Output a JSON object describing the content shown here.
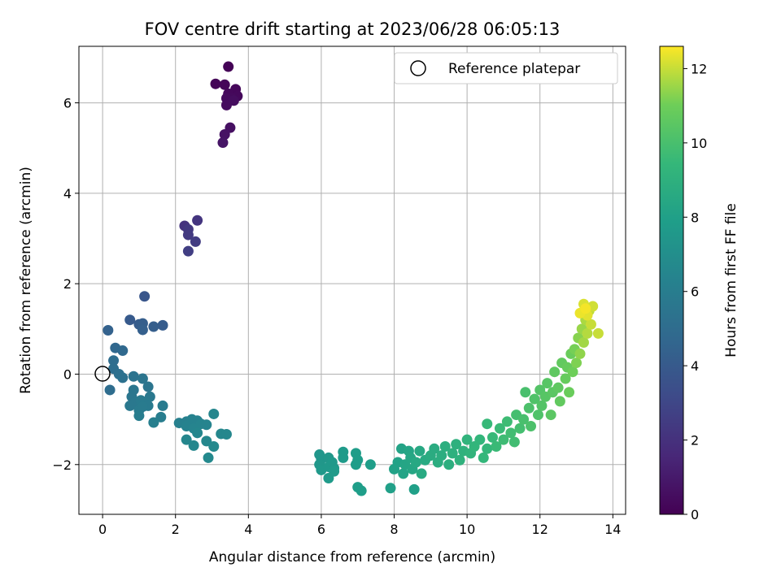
{
  "chart_data": {
    "type": "scatter",
    "title": "FOV centre drift starting at 2023/06/28 06:05:13",
    "xlabel": "Angular distance from reference (arcmin)",
    "ylabel": "Rotation from reference (arcmin)",
    "xlim": [
      -0.65,
      14.35
    ],
    "ylim": [
      -3.1,
      7.25
    ],
    "xticks": [
      0,
      2,
      4,
      6,
      8,
      10,
      12,
      14
    ],
    "yticks": [
      -2,
      0,
      2,
      4,
      6
    ],
    "grid": true,
    "legend": {
      "placement": "top-right",
      "entries": [
        "Reference platepar"
      ]
    },
    "reference_point": {
      "x": 0,
      "y": 0
    },
    "colorbar": {
      "label": "Hours from first FF file",
      "range": [
        0,
        12.6
      ],
      "ticks": [
        0,
        2,
        4,
        6,
        8,
        10,
        12
      ],
      "colormap": "viridis"
    },
    "points": [
      {
        "x": 3.45,
        "y": 6.8,
        "c": 0.1
      },
      {
        "x": 3.1,
        "y": 6.42,
        "c": 0.15
      },
      {
        "x": 3.35,
        "y": 6.4,
        "c": 0.2
      },
      {
        "x": 3.65,
        "y": 6.3,
        "c": 0.25
      },
      {
        "x": 3.7,
        "y": 6.15,
        "c": 0.3
      },
      {
        "x": 3.55,
        "y": 6.1,
        "c": 0.35
      },
      {
        "x": 3.4,
        "y": 6.1,
        "c": 0.4
      },
      {
        "x": 3.4,
        "y": 5.95,
        "c": 0.45
      },
      {
        "x": 3.6,
        "y": 6.05,
        "c": 0.5
      },
      {
        "x": 3.45,
        "y": 6.2,
        "c": 0.3
      },
      {
        "x": 3.5,
        "y": 5.45,
        "c": 0.6
      },
      {
        "x": 3.35,
        "y": 5.3,
        "c": 0.7
      },
      {
        "x": 3.3,
        "y": 5.12,
        "c": 0.8
      },
      {
        "x": 2.25,
        "y": 3.28,
        "c": 2.1
      },
      {
        "x": 2.6,
        "y": 3.4,
        "c": 2.2
      },
      {
        "x": 2.35,
        "y": 3.2,
        "c": 2.3
      },
      {
        "x": 2.35,
        "y": 3.08,
        "c": 2.4
      },
      {
        "x": 2.55,
        "y": 2.93,
        "c": 2.5
      },
      {
        "x": 2.35,
        "y": 2.72,
        "c": 2.6
      },
      {
        "x": 1.15,
        "y": 1.72,
        "c": 3.8
      },
      {
        "x": 0.75,
        "y": 1.2,
        "c": 4.0
      },
      {
        "x": 1.0,
        "y": 1.1,
        "c": 4.1
      },
      {
        "x": 1.1,
        "y": 1.12,
        "c": 4.2
      },
      {
        "x": 1.1,
        "y": 0.98,
        "c": 4.3
      },
      {
        "x": 1.4,
        "y": 1.05,
        "c": 4.2
      },
      {
        "x": 1.65,
        "y": 1.08,
        "c": 4.1
      },
      {
        "x": 0.15,
        "y": 0.97,
        "c": 4.4
      },
      {
        "x": 0.35,
        "y": 0.58,
        "c": 4.7
      },
      {
        "x": 0.55,
        "y": 0.52,
        "c": 4.8
      },
      {
        "x": 0.3,
        "y": 0.3,
        "c": 5.0
      },
      {
        "x": 0.3,
        "y": 0.12,
        "c": 5.1
      },
      {
        "x": 0.45,
        "y": 0.0,
        "c": 5.2
      },
      {
        "x": 0.55,
        "y": -0.08,
        "c": 5.3
      },
      {
        "x": 0.2,
        "y": -0.35,
        "c": 5.0
      },
      {
        "x": 0.85,
        "y": -0.05,
        "c": 5.4
      },
      {
        "x": 1.1,
        "y": -0.1,
        "c": 5.5
      },
      {
        "x": 1.25,
        "y": -0.28,
        "c": 5.5
      },
      {
        "x": 0.85,
        "y": -0.35,
        "c": 5.6
      },
      {
        "x": 0.8,
        "y": -0.5,
        "c": 5.6
      },
      {
        "x": 0.9,
        "y": -0.62,
        "c": 5.7
      },
      {
        "x": 0.75,
        "y": -0.7,
        "c": 5.7
      },
      {
        "x": 1.05,
        "y": -0.58,
        "c": 5.8
      },
      {
        "x": 1.2,
        "y": -0.62,
        "c": 5.8
      },
      {
        "x": 1.3,
        "y": -0.5,
        "c": 5.7
      },
      {
        "x": 1.0,
        "y": -0.8,
        "c": 5.9
      },
      {
        "x": 1.1,
        "y": -0.72,
        "c": 5.9
      },
      {
        "x": 1.25,
        "y": -0.7,
        "c": 5.8
      },
      {
        "x": 1.65,
        "y": -0.7,
        "c": 5.9
      },
      {
        "x": 1.0,
        "y": -0.92,
        "c": 6.0
      },
      {
        "x": 1.6,
        "y": -0.95,
        "c": 6.0
      },
      {
        "x": 1.4,
        "y": -1.07,
        "c": 6.1
      },
      {
        "x": 2.1,
        "y": -1.08,
        "c": 6.2
      },
      {
        "x": 2.3,
        "y": -1.05,
        "c": 6.2
      },
      {
        "x": 2.45,
        "y": -1.0,
        "c": 6.3
      },
      {
        "x": 2.6,
        "y": -1.03,
        "c": 6.3
      },
      {
        "x": 2.3,
        "y": -1.15,
        "c": 6.3
      },
      {
        "x": 2.5,
        "y": -1.2,
        "c": 6.4
      },
      {
        "x": 2.7,
        "y": -1.1,
        "c": 6.4
      },
      {
        "x": 2.85,
        "y": -1.12,
        "c": 6.4
      },
      {
        "x": 3.05,
        "y": -0.88,
        "c": 6.5
      },
      {
        "x": 2.6,
        "y": -1.3,
        "c": 6.5
      },
      {
        "x": 2.3,
        "y": -1.45,
        "c": 6.5
      },
      {
        "x": 2.5,
        "y": -1.58,
        "c": 6.6
      },
      {
        "x": 2.85,
        "y": -1.48,
        "c": 6.6
      },
      {
        "x": 3.05,
        "y": -1.6,
        "c": 6.7
      },
      {
        "x": 2.9,
        "y": -1.85,
        "c": 6.7
      },
      {
        "x": 3.25,
        "y": -1.32,
        "c": 6.6
      },
      {
        "x": 3.4,
        "y": -1.33,
        "c": 6.6
      },
      {
        "x": 5.95,
        "y": -1.78,
        "c": 7.4
      },
      {
        "x": 6.0,
        "y": -1.88,
        "c": 7.4
      },
      {
        "x": 5.95,
        "y": -2.0,
        "c": 7.5
      },
      {
        "x": 6.2,
        "y": -1.85,
        "c": 7.5
      },
      {
        "x": 6.0,
        "y": -2.12,
        "c": 7.6
      },
      {
        "x": 6.2,
        "y": -2.05,
        "c": 7.6
      },
      {
        "x": 6.35,
        "y": -2.08,
        "c": 7.6
      },
      {
        "x": 6.3,
        "y": -1.95,
        "c": 7.6
      },
      {
        "x": 6.2,
        "y": -2.3,
        "c": 7.7
      },
      {
        "x": 6.35,
        "y": -2.15,
        "c": 7.7
      },
      {
        "x": 6.6,
        "y": -1.72,
        "c": 7.7
      },
      {
        "x": 6.6,
        "y": -1.85,
        "c": 7.7
      },
      {
        "x": 6.95,
        "y": -1.75,
        "c": 7.8
      },
      {
        "x": 7.0,
        "y": -1.9,
        "c": 7.8
      },
      {
        "x": 6.95,
        "y": -2.0,
        "c": 7.8
      },
      {
        "x": 7.0,
        "y": -2.5,
        "c": 7.9
      },
      {
        "x": 7.1,
        "y": -2.58,
        "c": 7.9
      },
      {
        "x": 7.35,
        "y": -2.0,
        "c": 7.9
      },
      {
        "x": 7.9,
        "y": -2.52,
        "c": 8.0
      },
      {
        "x": 8.55,
        "y": -2.55,
        "c": 8.0
      },
      {
        "x": 8.0,
        "y": -2.1,
        "c": 8.1
      },
      {
        "x": 8.1,
        "y": -1.95,
        "c": 8.1
      },
      {
        "x": 8.2,
        "y": -1.65,
        "c": 8.2
      },
      {
        "x": 8.25,
        "y": -2.2,
        "c": 8.2
      },
      {
        "x": 8.3,
        "y": -2.0,
        "c": 8.3
      },
      {
        "x": 8.4,
        "y": -1.7,
        "c": 8.3
      },
      {
        "x": 8.45,
        "y": -1.85,
        "c": 8.4
      },
      {
        "x": 8.5,
        "y": -2.1,
        "c": 8.4
      },
      {
        "x": 8.6,
        "y": -1.95,
        "c": 8.5
      },
      {
        "x": 8.7,
        "y": -1.7,
        "c": 8.5
      },
      {
        "x": 8.75,
        "y": -2.2,
        "c": 8.6
      },
      {
        "x": 8.85,
        "y": -1.9,
        "c": 8.6
      },
      {
        "x": 9.0,
        "y": -1.8,
        "c": 8.7
      },
      {
        "x": 9.1,
        "y": -1.65,
        "c": 8.7
      },
      {
        "x": 9.2,
        "y": -1.95,
        "c": 8.8
      },
      {
        "x": 9.3,
        "y": -1.8,
        "c": 8.8
      },
      {
        "x": 9.4,
        "y": -1.6,
        "c": 8.9
      },
      {
        "x": 9.5,
        "y": -2.0,
        "c": 8.9
      },
      {
        "x": 9.6,
        "y": -1.75,
        "c": 9.0
      },
      {
        "x": 9.7,
        "y": -1.55,
        "c": 9.0
      },
      {
        "x": 9.8,
        "y": -1.9,
        "c": 9.1
      },
      {
        "x": 9.9,
        "y": -1.7,
        "c": 9.1
      },
      {
        "x": 10.0,
        "y": -1.45,
        "c": 9.2
      },
      {
        "x": 10.1,
        "y": -1.75,
        "c": 9.2
      },
      {
        "x": 10.2,
        "y": -1.6,
        "c": 9.3
      },
      {
        "x": 10.35,
        "y": -1.45,
        "c": 9.3
      },
      {
        "x": 10.45,
        "y": -1.85,
        "c": 9.4
      },
      {
        "x": 10.55,
        "y": -1.65,
        "c": 9.4
      },
      {
        "x": 10.55,
        "y": -1.1,
        "c": 9.5
      },
      {
        "x": 10.7,
        "y": -1.4,
        "c": 9.5
      },
      {
        "x": 10.8,
        "y": -1.6,
        "c": 9.6
      },
      {
        "x": 10.9,
        "y": -1.2,
        "c": 9.6
      },
      {
        "x": 11.0,
        "y": -1.45,
        "c": 9.7
      },
      {
        "x": 11.1,
        "y": -1.05,
        "c": 9.7
      },
      {
        "x": 11.2,
        "y": -1.3,
        "c": 9.8
      },
      {
        "x": 11.3,
        "y": -1.5,
        "c": 9.8
      },
      {
        "x": 11.35,
        "y": -0.9,
        "c": 9.9
      },
      {
        "x": 11.45,
        "y": -1.2,
        "c": 9.9
      },
      {
        "x": 11.55,
        "y": -1.0,
        "c": 10.0
      },
      {
        "x": 11.6,
        "y": -0.4,
        "c": 10.0
      },
      {
        "x": 11.7,
        "y": -0.75,
        "c": 10.1
      },
      {
        "x": 11.75,
        "y": -1.15,
        "c": 10.1
      },
      {
        "x": 11.85,
        "y": -0.55,
        "c": 10.2
      },
      {
        "x": 11.95,
        "y": -0.9,
        "c": 10.2
      },
      {
        "x": 12.0,
        "y": -0.35,
        "c": 10.3
      },
      {
        "x": 12.05,
        "y": -0.7,
        "c": 10.3
      },
      {
        "x": 12.15,
        "y": -0.5,
        "c": 10.4
      },
      {
        "x": 12.2,
        "y": -0.2,
        "c": 10.4
      },
      {
        "x": 12.3,
        "y": -0.9,
        "c": 10.5
      },
      {
        "x": 12.35,
        "y": -0.4,
        "c": 10.5
      },
      {
        "x": 12.4,
        "y": 0.05,
        "c": 10.6
      },
      {
        "x": 12.5,
        "y": -0.3,
        "c": 10.6
      },
      {
        "x": 12.55,
        "y": -0.6,
        "c": 10.7
      },
      {
        "x": 12.6,
        "y": 0.25,
        "c": 10.7
      },
      {
        "x": 12.7,
        "y": -0.1,
        "c": 10.8
      },
      {
        "x": 12.75,
        "y": 0.15,
        "c": 10.8
      },
      {
        "x": 12.8,
        "y": -0.4,
        "c": 10.9
      },
      {
        "x": 12.85,
        "y": 0.45,
        "c": 10.9
      },
      {
        "x": 12.9,
        "y": 0.05,
        "c": 11.0
      },
      {
        "x": 12.95,
        "y": 0.55,
        "c": 11.1
      },
      {
        "x": 13.0,
        "y": 0.25,
        "c": 11.2
      },
      {
        "x": 13.05,
        "y": 0.8,
        "c": 11.3
      },
      {
        "x": 13.1,
        "y": 0.45,
        "c": 11.4
      },
      {
        "x": 13.15,
        "y": 1.0,
        "c": 11.5
      },
      {
        "x": 13.2,
        "y": 0.7,
        "c": 11.6
      },
      {
        "x": 13.25,
        "y": 1.2,
        "c": 11.7
      },
      {
        "x": 13.3,
        "y": 0.9,
        "c": 11.8
      },
      {
        "x": 13.35,
        "y": 1.4,
        "c": 11.9
      },
      {
        "x": 13.4,
        "y": 1.1,
        "c": 12.0
      },
      {
        "x": 13.45,
        "y": 1.5,
        "c": 12.1
      },
      {
        "x": 13.2,
        "y": 1.55,
        "c": 12.2
      },
      {
        "x": 13.3,
        "y": 1.3,
        "c": 12.3
      },
      {
        "x": 13.6,
        "y": 0.9,
        "c": 12.0
      },
      {
        "x": 13.1,
        "y": 1.35,
        "c": 12.4
      },
      {
        "x": 13.25,
        "y": 1.45,
        "c": 12.5
      }
    ]
  }
}
